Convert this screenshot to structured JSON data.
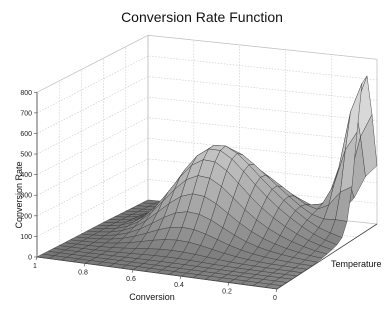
{
  "chart_data": {
    "type": "surface",
    "title": "Conversion Rate Function",
    "xlabel": "Conversion",
    "ylabel": "Temperature",
    "zlabel": "Conversion Rate",
    "x_ticks": [
      "1",
      "0.8",
      "0.6",
      "0.4",
      "0.2",
      "0"
    ],
    "z_ticks": [
      "0",
      "100",
      "200",
      "300",
      "400",
      "500",
      "600",
      "700",
      "800"
    ],
    "xlim": [
      1,
      0
    ],
    "zlim": [
      0,
      800
    ],
    "grid": true,
    "colors": {
      "surface_low": "#6e6e6e",
      "surface_high": "#e4e4e4",
      "mesh": "#3c3c3c"
    },
    "peaks": [
      {
        "conversion": 0.55,
        "temperature_fraction": 0.62,
        "rate": 450
      },
      {
        "conversion": 0.0,
        "temperature_fraction": 0.88,
        "rate": 760
      }
    ]
  }
}
